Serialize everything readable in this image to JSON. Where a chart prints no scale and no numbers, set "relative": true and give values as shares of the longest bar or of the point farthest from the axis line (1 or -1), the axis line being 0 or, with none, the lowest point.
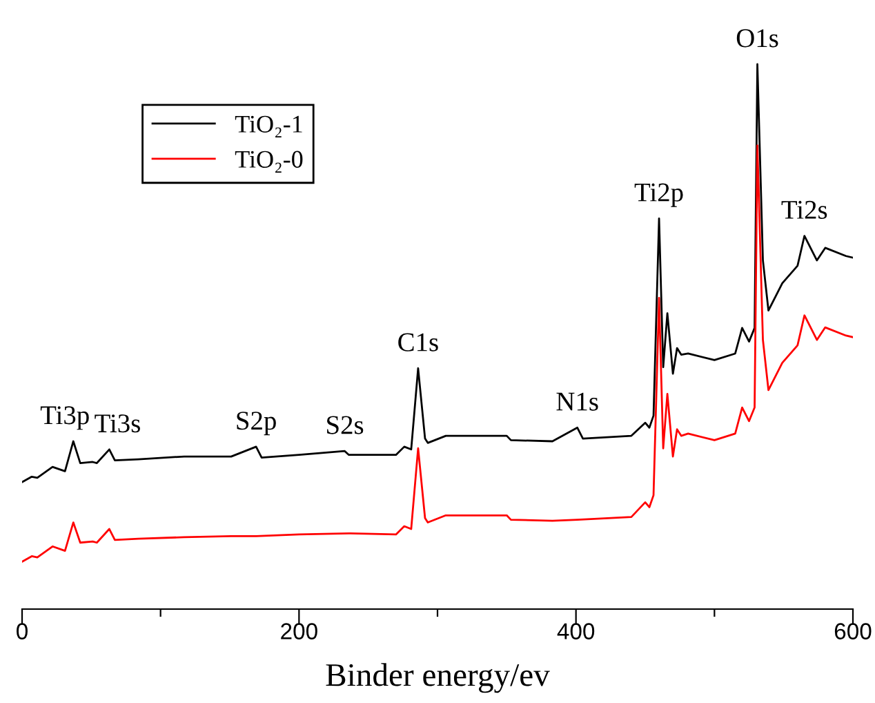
{
  "chart_data": {
    "type": "line",
    "relative": true,
    "xlabel": "Binder energy/ev",
    "xlim": [
      0,
      600
    ],
    "xticks": [
      0,
      {
        "value": 100,
        "label": null
      },
      200,
      {
        "value": 300,
        "label": null
      },
      400,
      {
        "value": 500,
        "label": null
      },
      600
    ],
    "tick_labels": "x",
    "grid": false,
    "legend": "top left",
    "line_style": "solid",
    "marker": "none",
    "series": [
      {
        "name": "TiO₂-1",
        "color": "#000000",
        "x": [
          0,
          7,
          11,
          22,
          31,
          37,
          42,
          51,
          54,
          63,
          67,
          84,
          117,
          151,
          169,
          173,
          200,
          233,
          236,
          270,
          276,
          281,
          286,
          291,
          293,
          306,
          350,
          353,
          383,
          401,
          405,
          440,
          450,
          453,
          456,
          460,
          463,
          466,
          470,
          473,
          476,
          481,
          500,
          515,
          520,
          525,
          529,
          531,
          535,
          539,
          549,
          560,
          565,
          574,
          580,
          595,
          600
        ],
        "values": [
          0.233,
          0.243,
          0.241,
          0.261,
          0.253,
          0.308,
          0.268,
          0.27,
          0.268,
          0.293,
          0.273,
          0.275,
          0.28,
          0.28,
          0.298,
          0.278,
          0.283,
          0.29,
          0.283,
          0.283,
          0.298,
          0.293,
          0.442,
          0.313,
          0.305,
          0.318,
          0.318,
          0.31,
          0.308,
          0.333,
          0.313,
          0.318,
          0.342,
          0.333,
          0.355,
          0.717,
          0.444,
          0.543,
          0.432,
          0.479,
          0.467,
          0.469,
          0.457,
          0.469,
          0.516,
          0.491,
          0.516,
          1.0,
          0.64,
          0.548,
          0.598,
          0.63,
          0.685,
          0.64,
          0.663,
          0.648,
          0.645
        ]
      },
      {
        "name": "TiO₂-0",
        "color": "#ff0000",
        "x": [
          0,
          7,
          11,
          22,
          31,
          37,
          42,
          51,
          54,
          63,
          67,
          84,
          117,
          151,
          169,
          200,
          236,
          270,
          276,
          281,
          286,
          291,
          293,
          306,
          350,
          353,
          383,
          401,
          440,
          450,
          453,
          456,
          460,
          463,
          466,
          470,
          473,
          476,
          481,
          500,
          515,
          520,
          525,
          529,
          531,
          535,
          539,
          549,
          560,
          565,
          574,
          580,
          595,
          600
        ],
        "values": [
          0.087,
          0.097,
          0.095,
          0.115,
          0.107,
          0.159,
          0.122,
          0.124,
          0.122,
          0.147,
          0.127,
          0.129,
          0.132,
          0.134,
          0.134,
          0.137,
          0.139,
          0.137,
          0.152,
          0.147,
          0.295,
          0.167,
          0.159,
          0.172,
          0.172,
          0.164,
          0.162,
          0.164,
          0.169,
          0.196,
          0.187,
          0.209,
          0.571,
          0.295,
          0.395,
          0.28,
          0.33,
          0.318,
          0.322,
          0.31,
          0.322,
          0.37,
          0.345,
          0.37,
          0.851,
          0.494,
          0.402,
          0.452,
          0.484,
          0.539,
          0.494,
          0.517,
          0.502,
          0.499
        ]
      }
    ],
    "annotations": [
      {
        "text": "Ti3p",
        "x": 37,
        "y": 0.308
      },
      {
        "text": "Ti3s",
        "x": 63,
        "y": 0.293
      },
      {
        "text": "S2p",
        "x": 169,
        "y": 0.298
      },
      {
        "text": "S2s",
        "x": 233,
        "y": 0.29
      },
      {
        "text": "C1s",
        "x": 286,
        "y": 0.442
      },
      {
        "text": "N1s",
        "x": 401,
        "y": 0.333
      },
      {
        "text": "Ti2p",
        "x": 460,
        "y": 0.717
      },
      {
        "text": "O1s",
        "x": 531,
        "y": 1.0
      },
      {
        "text": "Ti2s",
        "x": 565,
        "y": 0.685
      }
    ]
  }
}
